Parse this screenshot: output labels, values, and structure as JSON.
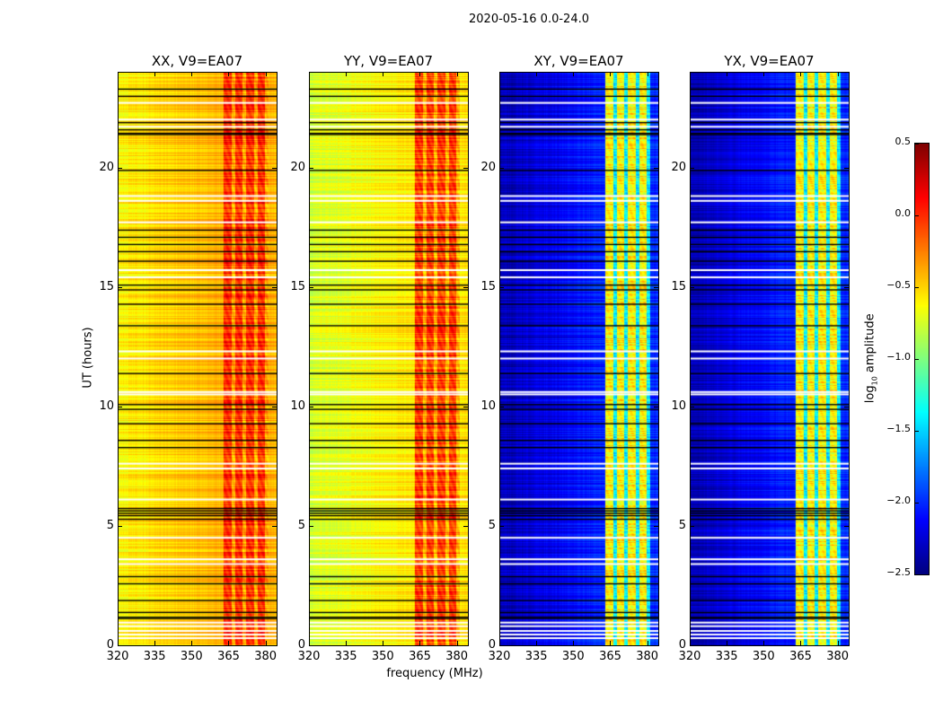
{
  "figure_title": "2020-05-16 0.0-24.0",
  "chart_data": {
    "type": "heatmap",
    "xlabel": "frequency (MHz)",
    "ylabel": "UT (hours)",
    "xlim": [
      320,
      384.5
    ],
    "ylim": [
      0,
      24
    ],
    "xticks": [
      "320",
      "335",
      "350",
      "365",
      "380"
    ],
    "yticks": [
      "0",
      "5",
      "10",
      "15",
      "20"
    ],
    "colorbar": {
      "label_main": "log",
      "label_sub": "10",
      "label_rest": " amplitude",
      "range": [
        -2.5,
        0.5
      ],
      "ticks": [
        "0.5",
        "0.0",
        "−0.5",
        "−1.0",
        "−1.5",
        "−2.0",
        "−2.5"
      ],
      "tick_values": [
        0.5,
        0.0,
        -0.5,
        -1.0,
        -1.5,
        -2.0,
        -2.5
      ],
      "colormap": "jet"
    },
    "rfi_band_mhz": [
      363,
      381
    ],
    "panels": [
      {
        "title": "XX, V9=EA07",
        "base_low_freq": -0.6,
        "base_high_freq": -0.4,
        "band_level": 0.0,
        "gap_level": -0.35
      },
      {
        "title": "YY, V9=EA07",
        "base_low_freq": -0.75,
        "base_high_freq": -0.55,
        "band_level": -0.05,
        "gap_level": -0.4
      },
      {
        "title": "XY, V9=EA07",
        "base_low_freq": -2.35,
        "base_high_freq": -2.0,
        "band_level": -0.6,
        "gap_level": -1.4
      },
      {
        "title": "YX, V9=EA07",
        "base_low_freq": -2.35,
        "base_high_freq": -2.0,
        "band_level": -0.6,
        "gap_level": -1.4
      }
    ],
    "flagged_white_hours": [
      0.3,
      0.45,
      0.6,
      0.8,
      0.95,
      3.4,
      3.6,
      4.5,
      6.1,
      7.4,
      7.6,
      10.5,
      10.6,
      12.0,
      12.3,
      15.4,
      15.7,
      17.7,
      18.6,
      18.8,
      21.7,
      22.0,
      22.7
    ],
    "flagged_black_hours": [
      1.15,
      1.2,
      1.4,
      1.9,
      2.6,
      2.9,
      5.3,
      5.45,
      5.55,
      5.65,
      5.75,
      8.3,
      8.6,
      9.3,
      9.9,
      10.1,
      11.4,
      13.4,
      14.3,
      14.9,
      15.1,
      16.1,
      16.5,
      16.8,
      17.1,
      17.4,
      19.9,
      21.4,
      21.45,
      21.6,
      21.9,
      23.0,
      23.3
    ]
  }
}
